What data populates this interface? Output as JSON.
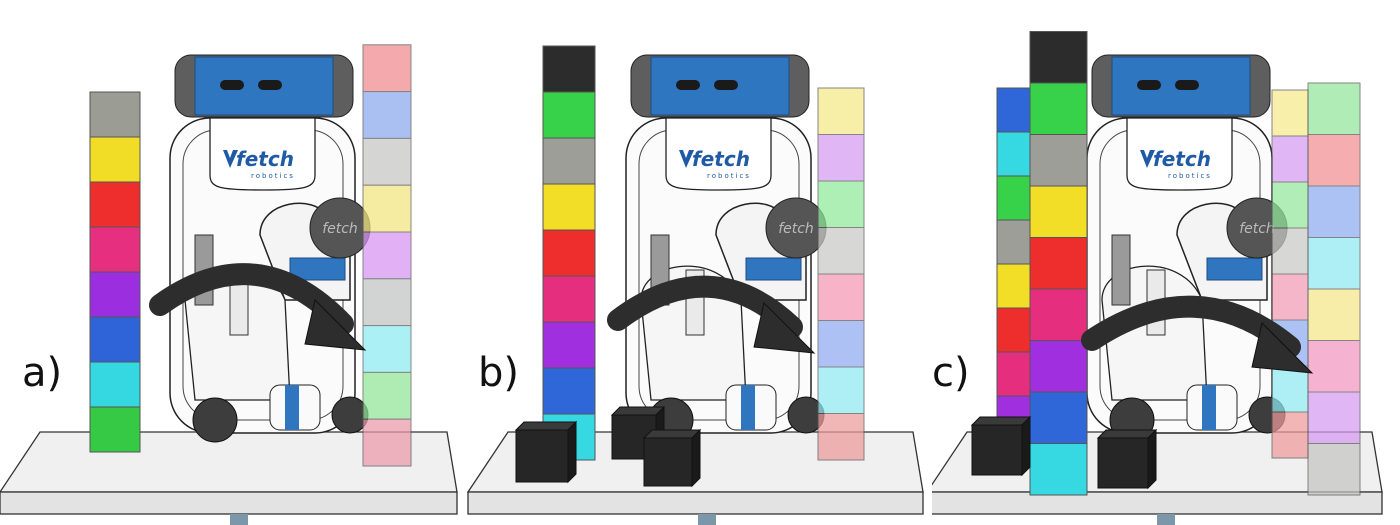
{
  "panels": [
    {
      "label": "a)",
      "brand": "fetch",
      "sub": "robotics",
      "disk": "fetch",
      "left_stack": [
        "#9b9c94",
        "#f1dd25",
        "#ee2d2d",
        "#e62f7e",
        "#9b2fe0",
        "#2e64d7",
        "#35d7e1",
        "#35c946"
      ],
      "right_stack": [
        "#f08a8e",
        "#8aa8ef",
        "#c6c7c4",
        "#f3e57e",
        "#d894f2",
        "#c2c4c4",
        "#8aebf1",
        "#90e597",
        "#ed98aa"
      ],
      "extra_stack": [],
      "cubes": 0
    },
    {
      "label": "b)",
      "brand": "fetch",
      "sub": "robotics",
      "disk": "fetch",
      "left_stack": [
        "#2c2c2c",
        "#37d24a",
        "#9d9e97",
        "#f2de26",
        "#ee2d2d",
        "#e52f7e",
        "#a02fe0",
        "#2f66d8",
        "#36d8e2"
      ],
      "right_stack": [
        "#f5ea87",
        "#d69af0",
        "#8fe99a",
        "#c8c9c6",
        "#f498b4",
        "#8eaaf1",
        "#8ee9f0",
        "#ed9a9a"
      ],
      "extra_stack": [],
      "cubes": 3
    },
    {
      "label": "c)",
      "brand": "fetch",
      "sub": "robotics",
      "disk": "fetch",
      "left_stack": [
        "#2c2c2c",
        "#37d24a",
        "#9d9e97",
        "#f2de26",
        "#ee2d2d",
        "#e52f7e",
        "#a02fe0",
        "#2f66d8",
        "#36d8e2"
      ],
      "right_stack": [
        "#92e79b",
        "#f28e93",
        "#8eabf0",
        "#8ee9f1",
        "#f4e687",
        "#f397c0",
        "#d59af1",
        "#c4c5c3"
      ],
      "extra_stack": [
        "#2f66d8",
        "#36d8e2",
        "#37d24a",
        "#9d9e97",
        "#f2de26",
        "#ee2d2d",
        "#e52f7e",
        "#a02fe0"
      ],
      "back_right_stack": [
        "#f6eb8a",
        "#d59af1",
        "#93e79c",
        "#c8c9c6",
        "#f39ab7",
        "#8eabf0",
        "#8ee9f1",
        "#ef9a9a"
      ],
      "cubes": 2
    }
  ]
}
